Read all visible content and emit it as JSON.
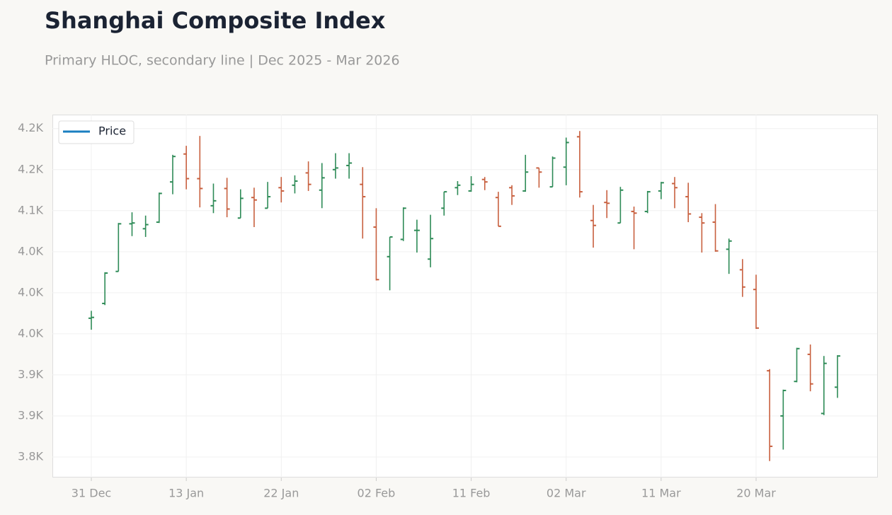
{
  "chart_data": {
    "type": "ohlc",
    "title": "Shanghai Composite Index",
    "subtitle": "Primary HLOC, secondary line | Dec 2025 - Mar 2026",
    "categories": [
      "31 Dec",
      null,
      null,
      null,
      null,
      null,
      null,
      "13 Jan",
      null,
      null,
      null,
      null,
      null,
      null,
      "22 Jan",
      null,
      null,
      null,
      null,
      null,
      null,
      "02 Feb",
      null,
      null,
      null,
      null,
      null,
      null,
      "11 Feb",
      null,
      null,
      null,
      null,
      null,
      null,
      "02 Mar",
      null,
      null,
      null,
      null,
      null,
      null,
      "11 Mar",
      null,
      null,
      null,
      null,
      null,
      null,
      "20 Mar",
      null,
      null,
      null,
      null,
      null,
      null
    ],
    "series": [
      {
        "name": "Price",
        "color": "#1a7fc1",
        "open": [
          3969,
          3987,
          4026,
          4084,
          4078,
          4086,
          4135,
          4169,
          4139,
          4106,
          4127,
          4091,
          4116,
          4103,
          4128,
          4131,
          4146,
          4125,
          4150,
          4155,
          4132,
          4080,
          4044,
          4065,
          4076,
          4041,
          4103,
          4128,
          4124,
          4138,
          4116,
          4128,
          4124,
          4152,
          4129,
          4153,
          4190,
          4088,
          4110,
          4085,
          4099,
          4099,
          4124,
          4133,
          4117,
          4092,
          4086,
          4053,
          4028,
          4004,
          3905,
          3850,
          3892,
          3925,
          3853,
          3885
        ],
        "high": [
          3978,
          4025,
          4085,
          4098,
          4094,
          4122,
          4168,
          4179,
          4191,
          4133,
          4140,
          4126,
          4128,
          4135,
          4141,
          4143,
          4160,
          4158,
          4170,
          4170,
          4153,
          4103,
          4068,
          4104,
          4089,
          4095,
          4123,
          4136,
          4142,
          4141,
          4123,
          4131,
          4168,
          4152,
          4166,
          4189,
          4197,
          4107,
          4125,
          4129,
          4105,
          4124,
          4135,
          4141,
          4134,
          4097,
          4108,
          4066,
          4041,
          4022,
          3907,
          3882,
          3933,
          3937,
          3923,
          3924
        ],
        "low": [
          3955,
          3985,
          4026,
          4069,
          4068,
          4085,
          4120,
          4126,
          4104,
          4097,
          4092,
          4091,
          4080,
          4103,
          4110,
          4121,
          4124,
          4103,
          4139,
          4139,
          4066,
          4015,
          4003,
          4063,
          4049,
          4031,
          4094,
          4119,
          4123,
          4125,
          4081,
          4107,
          4123,
          4128,
          4129,
          4131,
          4116,
          4055,
          4091,
          4085,
          4053,
          4097,
          4114,
          4103,
          4086,
          4049,
          4050,
          4023,
          3995,
          3956,
          3795,
          3809,
          3891,
          3880,
          3851,
          3872
        ],
        "close": [
          3970,
          4024,
          4084,
          4085,
          4083,
          4121,
          4166,
          4139,
          4127,
          4112,
          4102,
          4115,
          4113,
          4117,
          4124,
          4136,
          4132,
          4140,
          4152,
          4158,
          4117,
          4016,
          4068,
          4103,
          4076,
          4066,
          4123,
          4131,
          4132,
          4135,
          4081,
          4118,
          4147,
          4147,
          4164,
          4183,
          4123,
          4082,
          4109,
          4125,
          4097,
          4123,
          4134,
          4128,
          4096,
          4085,
          4051,
          4063,
          4007,
          3957,
          3813,
          3881,
          3932,
          3889,
          3914,
          3923
        ]
      }
    ],
    "up_color": "#2e8b57",
    "down_color": "#c8603f",
    "ylim": [
      3775,
      4217
    ],
    "yticks": [
      {
        "value": 3800,
        "label": "3.8K"
      },
      {
        "value": 3850,
        "label": "3.9K"
      },
      {
        "value": 3900,
        "label": "3.9K"
      },
      {
        "value": 3950,
        "label": "4.0K"
      },
      {
        "value": 4000,
        "label": "4.0K"
      },
      {
        "value": 4050,
        "label": "4.0K"
      },
      {
        "value": 4100,
        "label": "4.1K"
      },
      {
        "value": 4150,
        "label": "4.2K"
      },
      {
        "value": 4200,
        "label": "4.2K"
      }
    ],
    "grid": true,
    "legend": "upper left"
  }
}
